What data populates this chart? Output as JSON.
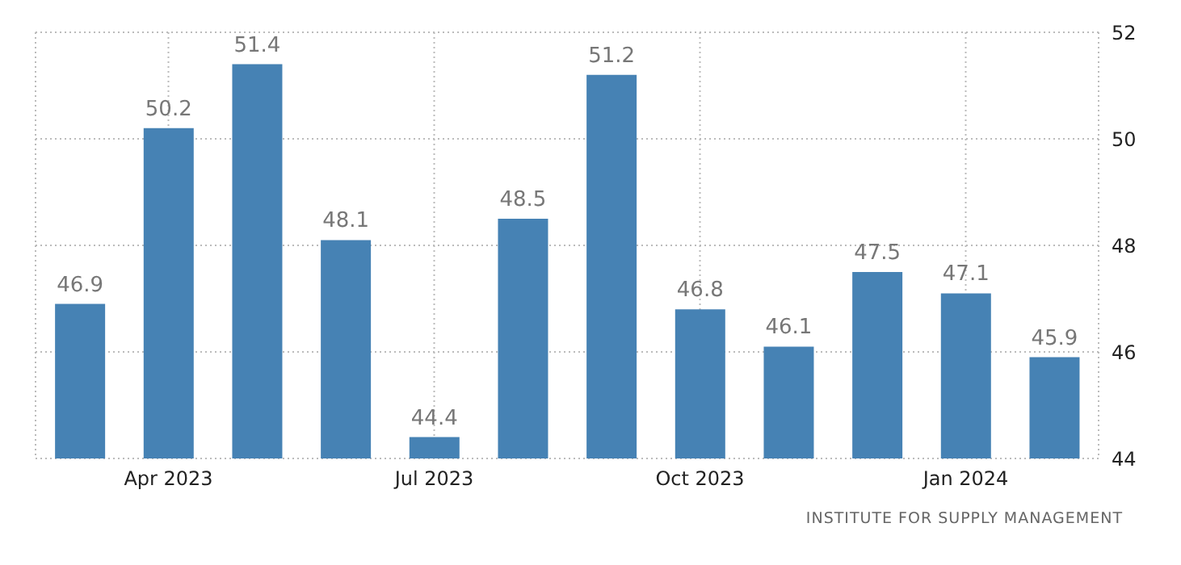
{
  "chart_data": {
    "type": "bar",
    "categories": [
      null,
      "Apr 2023",
      null,
      null,
      "Jul 2023",
      null,
      null,
      "Oct 2023",
      null,
      null,
      "Jan 2024",
      null
    ],
    "values": [
      46.9,
      50.2,
      51.4,
      48.1,
      44.4,
      48.5,
      51.2,
      46.8,
      46.1,
      47.5,
      47.1,
      45.9
    ],
    "color": "#4682b4",
    "ylim": [
      44,
      52
    ],
    "yticks": [
      44,
      46,
      48,
      50,
      52
    ],
    "grid": true,
    "data_labels": true,
    "annotations": [
      "INSTITUTE FOR SUPPLY MANAGEMENT"
    ]
  }
}
